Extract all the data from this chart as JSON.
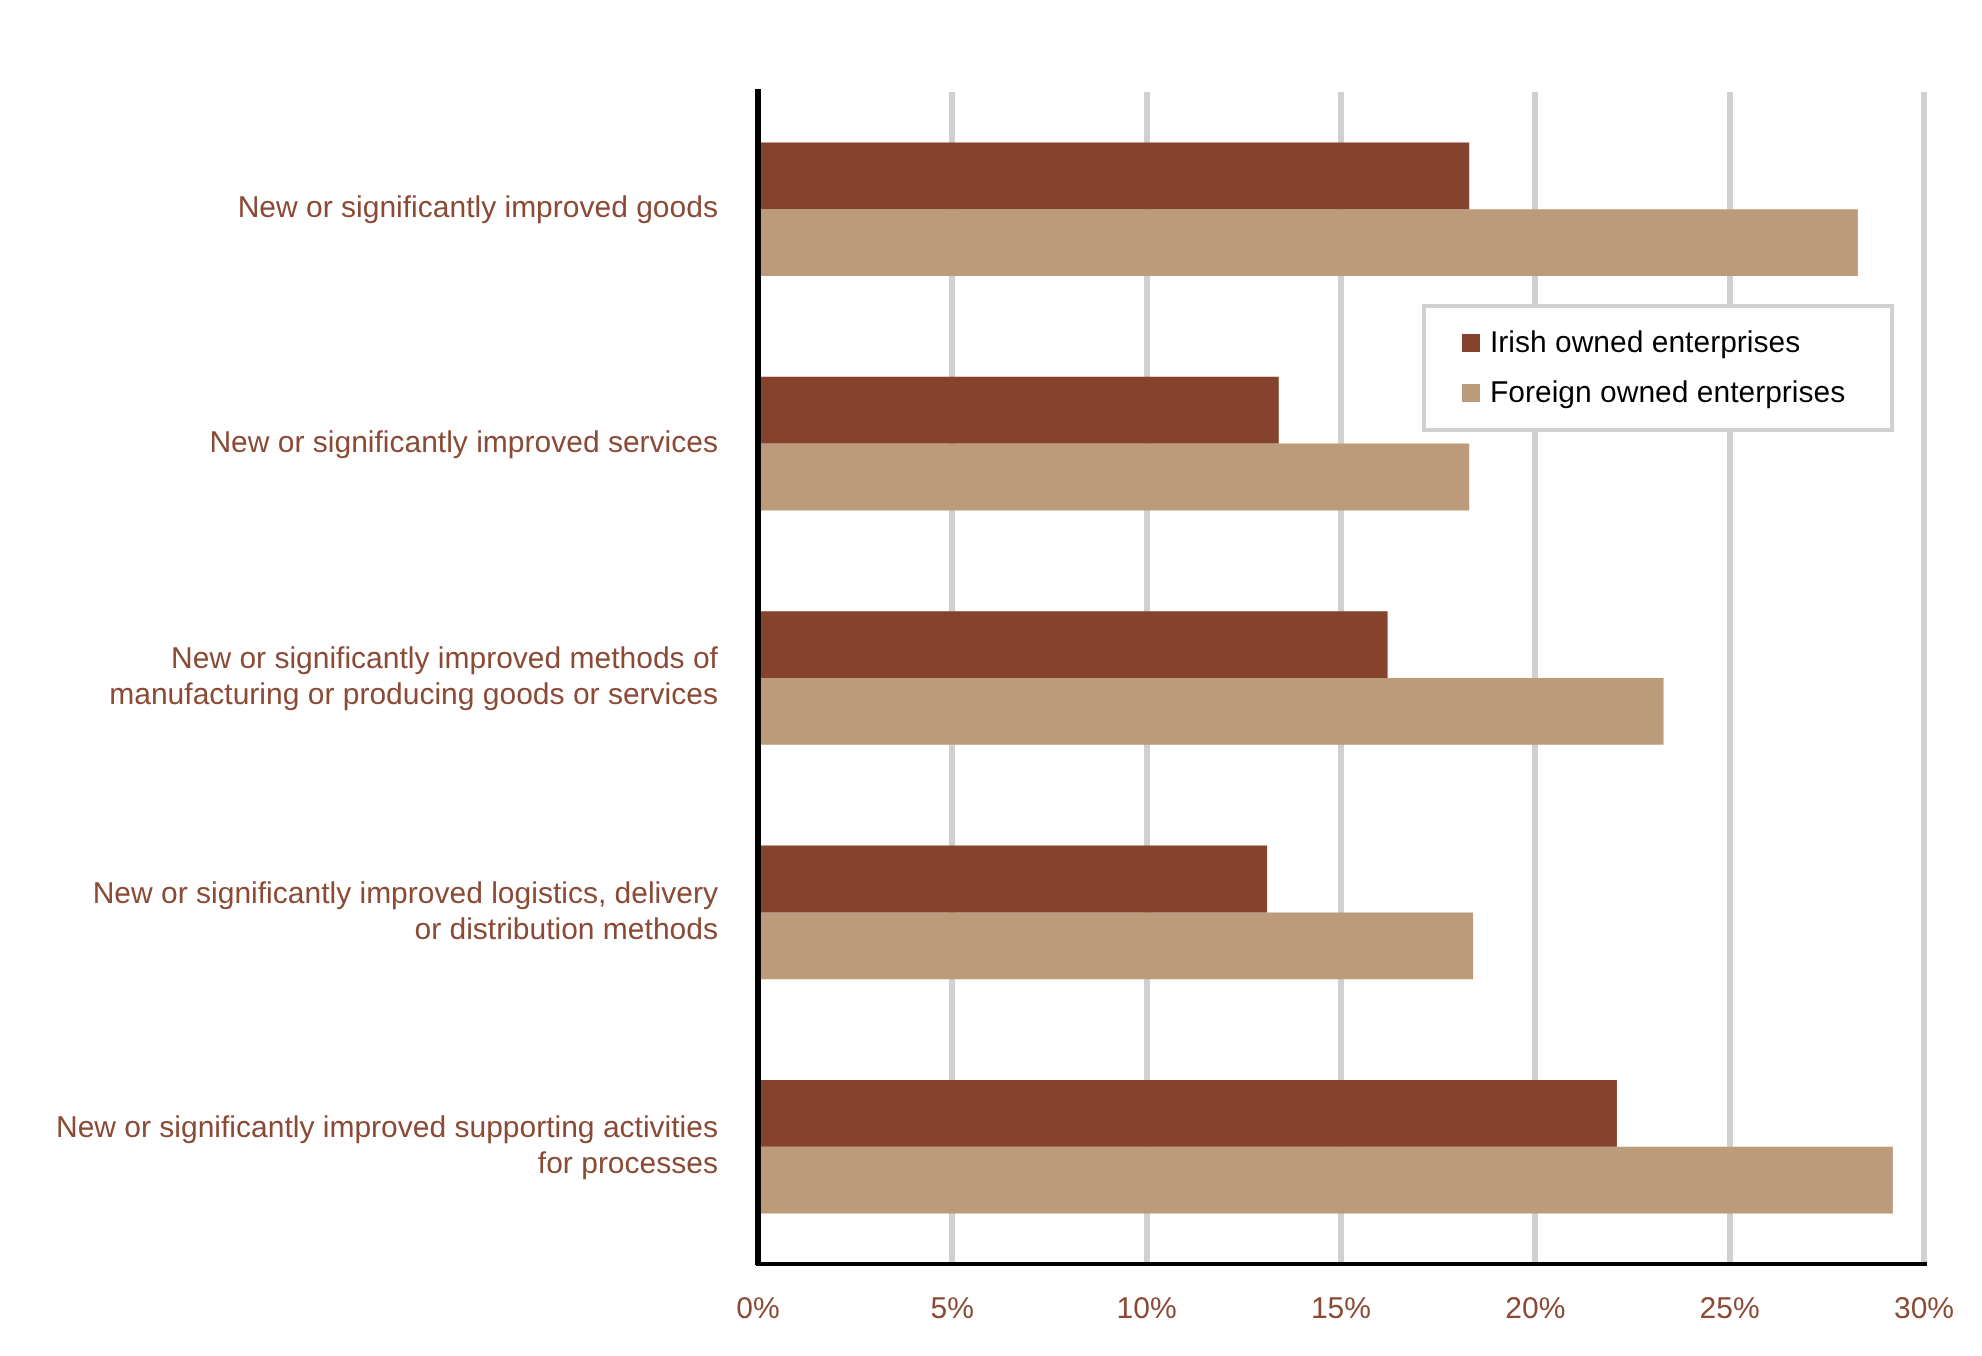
{
  "chart_data": {
    "type": "bar",
    "orientation": "horizontal",
    "categories": [
      "New or significantly improved goods",
      "New or significantly improved services",
      "New or significantly improved methods of manufacturing or producing goods or services",
      "New or significantly improved logistics, delivery or distribution methods",
      "New or significantly improved supporting activities for processes"
    ],
    "series": [
      {
        "name": "Irish owned enterprises",
        "color": "#85432e",
        "values": [
          18.3,
          13.4,
          16.2,
          13.1,
          22.1
        ]
      },
      {
        "name": "Foreign owned enterprises",
        "color": "#bc9b7b",
        "values": [
          28.3,
          18.3,
          23.3,
          18.4,
          29.2
        ]
      }
    ],
    "xlim": [
      0,
      30
    ],
    "xticks": [
      {
        "value": 0,
        "label": "0%"
      },
      {
        "value": 5,
        "label": "5%"
      },
      {
        "value": 10,
        "label": "10%"
      },
      {
        "value": 15,
        "label": "15%"
      },
      {
        "value": 20,
        "label": "20%"
      },
      {
        "value": 25,
        "label": "25%"
      },
      {
        "value": 30,
        "label": "30%"
      }
    ],
    "grid": "x",
    "legend": "top right"
  }
}
